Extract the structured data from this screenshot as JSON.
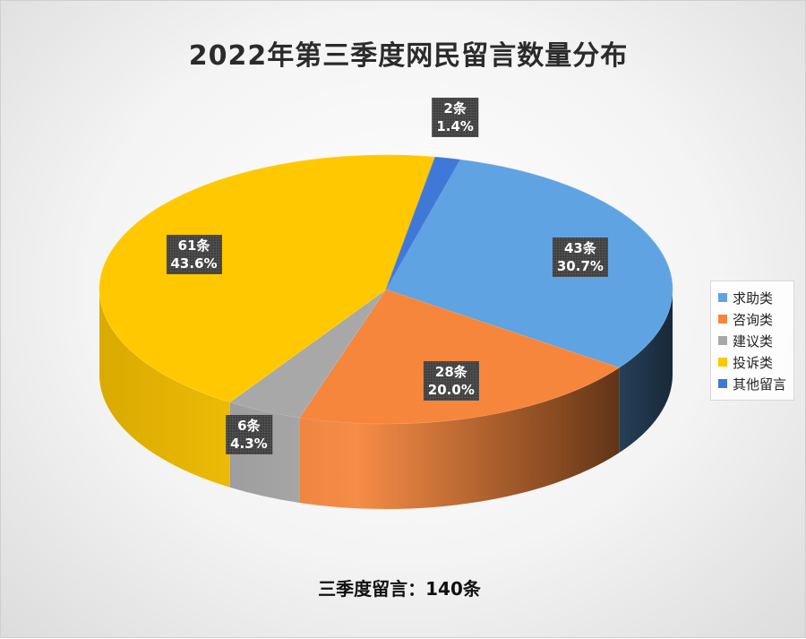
{
  "chart_data": {
    "type": "pie",
    "title": "2022年第三季度网民留言数量分布",
    "total_label": "三季度留言：140条",
    "slices": [
      {
        "name": "求助类",
        "count_label": "43条",
        "percent_label": "30.7%",
        "value": 43,
        "color": "#5fa3e2"
      },
      {
        "name": "咨询类",
        "count_label": "28条",
        "percent_label": "20.0%",
        "value": 28,
        "color": "#f5863c"
      },
      {
        "name": "建议类",
        "count_label": "6条",
        "percent_label": "4.3%",
        "value": 6,
        "color": "#a8a8a8"
      },
      {
        "name": "投诉类",
        "count_label": "61条",
        "percent_label": "43.6%",
        "value": 61,
        "color": "#ffc800"
      },
      {
        "name": "其他留言",
        "count_label": "2条",
        "percent_label": "1.4%",
        "value": 2,
        "color": "#3f78d6"
      }
    ],
    "legend_position": "right"
  }
}
